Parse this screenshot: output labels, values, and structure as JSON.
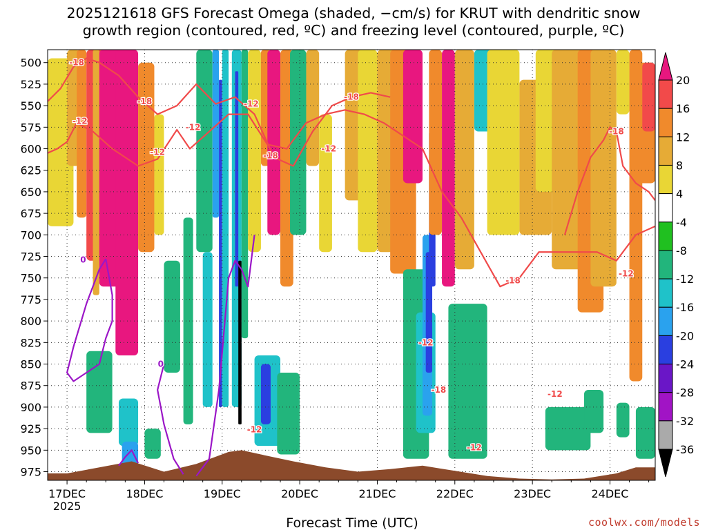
{
  "title": {
    "line1": "2025121618 GFS Forecast Omega (shaded, −cm/s) for KRUT with dendritic snow",
    "line2": "growth region (contoured, red, ºC) and freezing level (contoured, purple, ºC)"
  },
  "chart_data": {
    "type": "heatmap",
    "xlabel": "Forecast Time (UTC)",
    "ylabel": "",
    "x_ticks": [
      "17DEC",
      "18DEC",
      "19DEC",
      "20DEC",
      "21DEC",
      "22DEC",
      "23DEC",
      "24DEC"
    ],
    "x_tick_year": "2025",
    "y_ticks": [
      500,
      525,
      550,
      575,
      600,
      625,
      650,
      675,
      700,
      725,
      750,
      775,
      800,
      825,
      850,
      875,
      900,
      925,
      950,
      975
    ],
    "ylim_hpa": [
      485,
      985
    ],
    "xlim_hours_from_17DEC00": [
      -6,
      182
    ],
    "colorbar": {
      "ticks": [
        20,
        16,
        12,
        8,
        4,
        -4,
        -8,
        -12,
        -16,
        -20,
        -24,
        -28,
        -32,
        -36
      ],
      "bins": [
        {
          "range": ">20",
          "color": "#e8177f"
        },
        {
          "range": "16 to 20",
          "color": "#f24a4a"
        },
        {
          "range": "12 to 16",
          "color": "#f08a2c"
        },
        {
          "range": "8 to 12",
          "color": "#e6ab36"
        },
        {
          "range": "4 to 8",
          "color": "#e9d635"
        },
        {
          "range": "-4 to 4",
          "color": "#ffffff"
        },
        {
          "range": "-8 to -4",
          "color": "#20c020"
        },
        {
          "range": "-12 to -8",
          "color": "#22b57c"
        },
        {
          "range": "-16 to -12",
          "color": "#1fc2c9"
        },
        {
          "range": "-20 to -16",
          "color": "#2aa2ee"
        },
        {
          "range": "-24 to -20",
          "color": "#2a3fe0"
        },
        {
          "range": "-28 to -24",
          "color": "#6a16c7"
        },
        {
          "range": "-32 to -28",
          "color": "#a114c5"
        },
        {
          "range": "-36 to -32",
          "color": "#aaaaaa"
        },
        {
          "range": "<-36",
          "color": "#000000"
        }
      ]
    },
    "shaded_regions": [
      {
        "x": [
          -6,
          2
        ],
        "p": [
          495,
          690
        ],
        "value": 6
      },
      {
        "x": [
          0,
          4
        ],
        "p": [
          485,
          620
        ],
        "value": 10
      },
      {
        "x": [
          3,
          6
        ],
        "p": [
          485,
          680
        ],
        "value": 14
      },
      {
        "x": [
          6,
          12
        ],
        "p": [
          485,
          730
        ],
        "value": 18
      },
      {
        "x": [
          8,
          10
        ],
        "p": [
          485,
          770
        ],
        "value": 10
      },
      {
        "x": [
          10,
          20
        ],
        "p": [
          485,
          760
        ],
        "value": 26
      },
      {
        "x": [
          15,
          22
        ],
        "p": [
          485,
          840
        ],
        "value": 26
      },
      {
        "x": [
          22,
          27
        ],
        "p": [
          500,
          720
        ],
        "value": 14
      },
      {
        "x": [
          27,
          30
        ],
        "p": [
          560,
          700
        ],
        "value": 6
      },
      {
        "x": [
          6,
          14
        ],
        "p": [
          835,
          930
        ],
        "value": -8
      },
      {
        "x": [
          16,
          22
        ],
        "p": [
          890,
          945
        ],
        "value": -12
      },
      {
        "x": [
          17,
          22
        ],
        "p": [
          940,
          975
        ],
        "value": -16
      },
      {
        "x": [
          24,
          29
        ],
        "p": [
          925,
          960
        ],
        "value": -8
      },
      {
        "x": [
          30,
          35
        ],
        "p": [
          730,
          860
        ],
        "value": -8
      },
      {
        "x": [
          36,
          39
        ],
        "p": [
          680,
          920
        ],
        "value": -8
      },
      {
        "x": [
          40,
          45
        ],
        "p": [
          485,
          720
        ],
        "value": -8
      },
      {
        "x": [
          42,
          45
        ],
        "p": [
          720,
          900
        ],
        "value": -12
      },
      {
        "x": [
          45,
          47
        ],
        "p": [
          485,
          680
        ],
        "value": -16
      },
      {
        "x": [
          47,
          48
        ],
        "p": [
          520,
          900
        ],
        "value": -22
      },
      {
        "x": [
          48,
          50
        ],
        "p": [
          485,
          900
        ],
        "value": -12
      },
      {
        "x": [
          51,
          54
        ],
        "p": [
          485,
          900
        ],
        "value": -12
      },
      {
        "x": [
          52,
          53
        ],
        "p": [
          510,
          760
        ],
        "value": -22
      },
      {
        "x": [
          53,
          54
        ],
        "p": [
          730,
          920
        ],
        "value": -38
      },
      {
        "x": [
          54,
          56
        ],
        "p": [
          485,
          820
        ],
        "value": -8
      },
      {
        "x": [
          56,
          60
        ],
        "p": [
          485,
          720
        ],
        "value": 6
      },
      {
        "x": [
          60,
          63
        ],
        "p": [
          485,
          620
        ],
        "value": 14
      },
      {
        "x": [
          62,
          66
        ],
        "p": [
          485,
          700
        ],
        "value": 26
      },
      {
        "x": [
          66,
          70
        ],
        "p": [
          485,
          760
        ],
        "value": 14
      },
      {
        "x": [
          58,
          66
        ],
        "p": [
          840,
          945
        ],
        "value": -12
      },
      {
        "x": [
          60,
          63
        ],
        "p": [
          850,
          920
        ],
        "value": -22
      },
      {
        "x": [
          65,
          72
        ],
        "p": [
          860,
          955
        ],
        "value": -8
      },
      {
        "x": [
          69,
          74
        ],
        "p": [
          485,
          700
        ],
        "value": -8
      },
      {
        "x": [
          74,
          78
        ],
        "p": [
          485,
          620
        ],
        "value": 10
      },
      {
        "x": [
          78,
          82
        ],
        "p": [
          560,
          720
        ],
        "value": 6
      },
      {
        "x": [
          86,
          95
        ],
        "p": [
          485,
          660
        ],
        "value": 10
      },
      {
        "x": [
          90,
          96
        ],
        "p": [
          485,
          720
        ],
        "value": 6
      },
      {
        "x": [
          96,
          102
        ],
        "p": [
          485,
          720
        ],
        "value": 10
      },
      {
        "x": [
          100,
          108
        ],
        "p": [
          485,
          745
        ],
        "value": 14
      },
      {
        "x": [
          104,
          110
        ],
        "p": [
          485,
          640
        ],
        "value": 26
      },
      {
        "x": [
          104,
          112
        ],
        "p": [
          740,
          960
        ],
        "value": -8
      },
      {
        "x": [
          108,
          114
        ],
        "p": [
          790,
          930
        ],
        "value": -12
      },
      {
        "x": [
          110,
          113
        ],
        "p": [
          700,
          910
        ],
        "value": -16
      },
      {
        "x": [
          111,
          113
        ],
        "p": [
          720,
          860
        ],
        "value": -22
      },
      {
        "x": [
          112,
          114
        ],
        "p": [
          580,
          760
        ],
        "value": -22
      },
      {
        "x": [
          112,
          116
        ],
        "p": [
          485,
          700
        ],
        "value": 14
      },
      {
        "x": [
          116,
          120
        ],
        "p": [
          485,
          760
        ],
        "value": 26
      },
      {
        "x": [
          120,
          126
        ],
        "p": [
          485,
          740
        ],
        "value": 10
      },
      {
        "x": [
          118,
          130
        ],
        "p": [
          780,
          960
        ],
        "value": -8
      },
      {
        "x": [
          126,
          132
        ],
        "p": [
          485,
          580
        ],
        "value": -12
      },
      {
        "x": [
          130,
          140
        ],
        "p": [
          485,
          700
        ],
        "value": 6
      },
      {
        "x": [
          140,
          150
        ],
        "p": [
          520,
          700
        ],
        "value": 10
      },
      {
        "x": [
          145,
          153
        ],
        "p": [
          485,
          650
        ],
        "value": 6
      },
      {
        "x": [
          150,
          162
        ],
        "p": [
          485,
          740
        ],
        "value": 10
      },
      {
        "x": [
          158,
          166
        ],
        "p": [
          485,
          790
        ],
        "value": 14
      },
      {
        "x": [
          162,
          170
        ],
        "p": [
          485,
          760
        ],
        "value": 10
      },
      {
        "x": [
          170,
          174
        ],
        "p": [
          485,
          560
        ],
        "value": 6
      },
      {
        "x": [
          174,
          178
        ],
        "p": [
          485,
          870
        ],
        "value": 14
      },
      {
        "x": [
          176,
          182
        ],
        "p": [
          500,
          640
        ],
        "value": 14
      },
      {
        "x": [
          178,
          182
        ],
        "p": [
          500,
          580
        ],
        "value": 18
      },
      {
        "x": [
          148,
          162
        ],
        "p": [
          900,
          950
        ],
        "value": -8
      },
      {
        "x": [
          160,
          166
        ],
        "p": [
          880,
          930
        ],
        "value": -8
      },
      {
        "x": [
          170,
          174
        ],
        "p": [
          895,
          935
        ],
        "value": -8
      },
      {
        "x": [
          176,
          182
        ],
        "p": [
          900,
          960
        ],
        "value": -8
      }
    ],
    "terrain": {
      "label": "surface",
      "color": "#8b4a2b",
      "x": [
        -6,
        0,
        10,
        20,
        30,
        40,
        50,
        54,
        60,
        70,
        80,
        90,
        100,
        110,
        120,
        130,
        140,
        150,
        160,
        170,
        176,
        182
      ],
      "p": [
        977,
        977,
        970,
        963,
        975,
        966,
        952,
        950,
        955,
        963,
        970,
        975,
        972,
        968,
        974,
        980,
        983,
        984,
        983,
        977,
        970,
        970
      ]
    },
    "red_contours": {
      "color": "#f04a4a",
      "lines": [
        {
          "level": -12,
          "x": [
            -6,
            -3,
            0,
            3,
            8,
            14,
            22,
            28,
            34,
            38,
            44,
            50,
            56,
            62,
            68,
            74,
            80,
            86,
            92,
            98,
            104,
            110,
            116,
            122,
            128,
            134,
            140,
            146,
            152,
            158,
            164,
            170,
            176,
            182
          ],
          "p": [
            605,
            600,
            592,
            570,
            580,
            600,
            620,
            612,
            578,
            600,
            580,
            560,
            560,
            595,
            600,
            570,
            560,
            555,
            560,
            570,
            585,
            600,
            650,
            680,
            720,
            760,
            750,
            720,
            720,
            720,
            720,
            730,
            700,
            690
          ]
        },
        {
          "level": -18,
          "x": [
            -6,
            -2,
            2,
            6,
            10,
            16,
            22,
            28,
            34,
            40,
            46,
            52,
            58,
            64,
            70,
            76,
            82,
            88,
            94,
            100
          ],
          "p": [
            545,
            530,
            505,
            495,
            500,
            515,
            540,
            560,
            550,
            525,
            548,
            540,
            560,
            610,
            620,
            580,
            550,
            540,
            535,
            540
          ]
        },
        {
          "level": -18,
          "x": [
            154,
            158,
            162,
            166,
            168,
            170,
            172,
            176,
            180,
            182
          ],
          "p": [
            700,
            650,
            610,
            590,
            575,
            580,
            620,
            640,
            650,
            660
          ]
        }
      ],
      "labels": [
        {
          "text": "-18",
          "x": 3,
          "p": 500
        },
        {
          "text": "-18",
          "x": 24,
          "p": 545
        },
        {
          "text": "-12",
          "x": 4,
          "p": 568
        },
        {
          "text": "-12",
          "x": 28,
          "p": 604
        },
        {
          "text": "-12",
          "x": 39,
          "p": 575
        },
        {
          "text": "-12",
          "x": 57,
          "p": 548
        },
        {
          "text": "-18",
          "x": 63,
          "p": 608
        },
        {
          "text": "-18",
          "x": 88,
          "p": 540
        },
        {
          "text": "-12",
          "x": 81,
          "p": 600
        },
        {
          "text": "-12",
          "x": 111,
          "p": 825
        },
        {
          "text": "-18",
          "x": 115,
          "p": 880
        },
        {
          "text": "-12",
          "x": 126,
          "p": 947
        },
        {
          "text": "-18",
          "x": 138,
          "p": 753
        },
        {
          "text": "-12",
          "x": 151,
          "p": 885
        },
        {
          "text": "-12",
          "x": 173,
          "p": 745
        },
        {
          "text": "-12",
          "x": 58,
          "p": 926
        },
        {
          "text": "-18",
          "x": 170,
          "p": 580
        }
      ]
    },
    "purple_contours": {
      "color": "#9b16c7",
      "lines": [
        {
          "level": 0,
          "x": [
            12,
            10,
            8,
            6,
            2,
            0,
            2,
            6,
            10,
            12,
            14,
            14,
            12
          ],
          "p": [
            728,
            740,
            760,
            780,
            830,
            860,
            870,
            860,
            850,
            820,
            800,
            770,
            728
          ]
        },
        {
          "level": 0,
          "x": [
            30,
            28,
            30,
            33,
            36
          ],
          "p": [
            850,
            880,
            920,
            960,
            978
          ]
        },
        {
          "level": 0,
          "x": [
            40,
            44,
            47,
            50,
            52,
            54,
            56,
            58
          ],
          "p": [
            980,
            960,
            880,
            750,
            730,
            740,
            760,
            700
          ]
        },
        {
          "level": 0,
          "x": [
            16,
            18,
            20,
            22
          ],
          "p": [
            968,
            958,
            950,
            965
          ]
        }
      ],
      "labels": [
        {
          "text": "0",
          "x": 5,
          "p": 729
        },
        {
          "text": "0",
          "x": 29,
          "p": 850
        }
      ]
    }
  },
  "credit": "coolwx.com/models"
}
